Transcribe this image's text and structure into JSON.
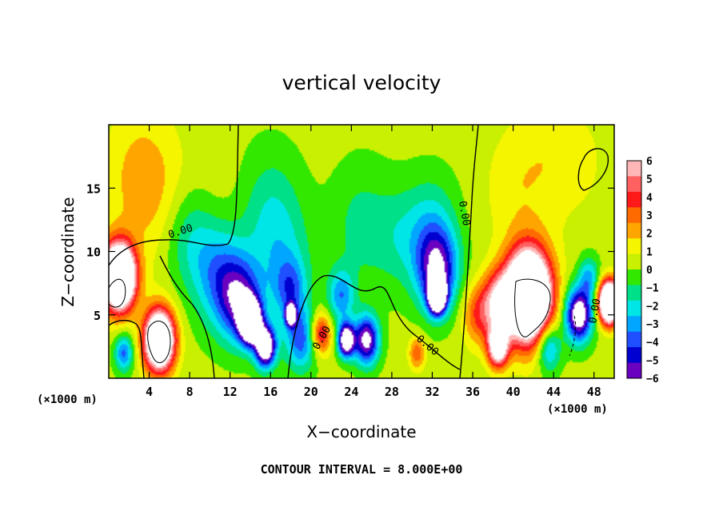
{
  "chart_data": {
    "type": "heatmap",
    "title": "vertical velocity",
    "xlabel": "X−coordinate",
    "ylabel": "Z−coordinate",
    "x_unit": "(×1000 m)",
    "z_unit": "(×1000 m)",
    "xlim": [
      0,
      50
    ],
    "ylim": [
      0,
      20
    ],
    "x_ticks": [
      4,
      8,
      12,
      16,
      20,
      24,
      28,
      32,
      36,
      40,
      44,
      48
    ],
    "y_ticks": [
      5,
      10,
      15
    ],
    "colorbar": {
      "range": [
        -6,
        6
      ],
      "labels": [
        "6",
        "5",
        "4",
        "3",
        "2",
        "1",
        "0",
        "−1",
        "−2",
        "−3",
        "−4",
        "−5",
        "−6"
      ],
      "colors": [
        "#ffb6b6",
        "#ff6060",
        "#ff1a1a",
        "#ff6a00",
        "#ffa500",
        "#f5f500",
        "#c8f000",
        "#32e800",
        "#00e088",
        "#00e6e6",
        "#00a6ff",
        "#1f4fff",
        "#0000d0",
        "#6a00c0"
      ]
    },
    "contour_labels": [
      "0.00",
      "0.00",
      "0.00",
      "0.00",
      "0.00"
    ],
    "footer": "CONTOUR INTERVAL = 8.000E+00",
    "features": [
      {
        "x": 1,
        "z": 8,
        "w": 1.6,
        "value": 14
      },
      {
        "x": 5,
        "z": 3,
        "w": 1.5,
        "value": 12
      },
      {
        "x": 1.5,
        "z": 2,
        "w": 0.9,
        "value": -4
      },
      {
        "x": 3,
        "z": 16,
        "w": 3.5,
        "value": 1.5
      },
      {
        "x": 5,
        "z": 14,
        "w": 3.5,
        "value": 0.8
      },
      {
        "x": 11,
        "z": 14,
        "w": 2.5,
        "value": 0.3
      },
      {
        "x": 8,
        "z": 11,
        "w": 2.5,
        "value": -2
      },
      {
        "x": 11,
        "z": 8,
        "w": 2.5,
        "value": -3.5
      },
      {
        "x": 13,
        "z": 6,
        "w": 2,
        "value": -5
      },
      {
        "x": 14,
        "z": 4.5,
        "w": 1,
        "value": -12
      },
      {
        "x": 15.5,
        "z": 2.5,
        "w": 1,
        "value": -9
      },
      {
        "x": 17,
        "z": 9,
        "w": 3,
        "value": -2
      },
      {
        "x": 18,
        "z": 7,
        "w": 1.5,
        "value": -3
      },
      {
        "x": 18,
        "z": 5,
        "w": 0.5,
        "value": -8
      },
      {
        "x": 19,
        "z": 3,
        "w": 1.5,
        "value": -4
      },
      {
        "x": 16,
        "z": 13.5,
        "w": 3,
        "value": -1.5
      },
      {
        "x": 21,
        "z": 3.5,
        "w": 1,
        "value": 4.5
      },
      {
        "x": 23,
        "z": 6.5,
        "w": 1.3,
        "value": -3.5
      },
      {
        "x": 23.5,
        "z": 3,
        "w": 0.8,
        "value": -9
      },
      {
        "x": 25.5,
        "z": 3,
        "w": 1.2,
        "value": -7
      },
      {
        "x": 25,
        "z": 12,
        "w": 3,
        "value": -1.5
      },
      {
        "x": 29,
        "z": 11,
        "w": 2.5,
        "value": -1.5
      },
      {
        "x": 30.5,
        "z": 2,
        "w": 0.8,
        "value": 3
      },
      {
        "x": 32.5,
        "z": 8.5,
        "w": 2,
        "value": -6
      },
      {
        "x": 32.5,
        "z": 6.5,
        "w": 0.8,
        "value": -12
      },
      {
        "x": 32,
        "z": 12,
        "w": 2.5,
        "value": -2
      },
      {
        "x": 36.5,
        "z": 5,
        "w": 1.5,
        "value": 3
      },
      {
        "x": 38.5,
        "z": 6,
        "w": 1.5,
        "value": 5
      },
      {
        "x": 38.5,
        "z": 2.5,
        "w": 1,
        "value": 8
      },
      {
        "x": 41.5,
        "z": 6.5,
        "w": 2.2,
        "value": 15
      },
      {
        "x": 43.5,
        "z": 2.5,
        "w": 1.2,
        "value": -4
      },
      {
        "x": 46.5,
        "z": 5,
        "w": 1.3,
        "value": -8
      },
      {
        "x": 47.5,
        "z": 8,
        "w": 1,
        "value": -3
      },
      {
        "x": 49.5,
        "z": 6,
        "w": 1,
        "value": 14
      },
      {
        "x": 44,
        "z": 17.5,
        "w": 3.5,
        "value": 1.2
      },
      {
        "x": 47,
        "z": 17,
        "w": 1.5,
        "value": 0.6
      },
      {
        "x": 40,
        "z": 15,
        "w": 3,
        "value": 1
      }
    ]
  }
}
